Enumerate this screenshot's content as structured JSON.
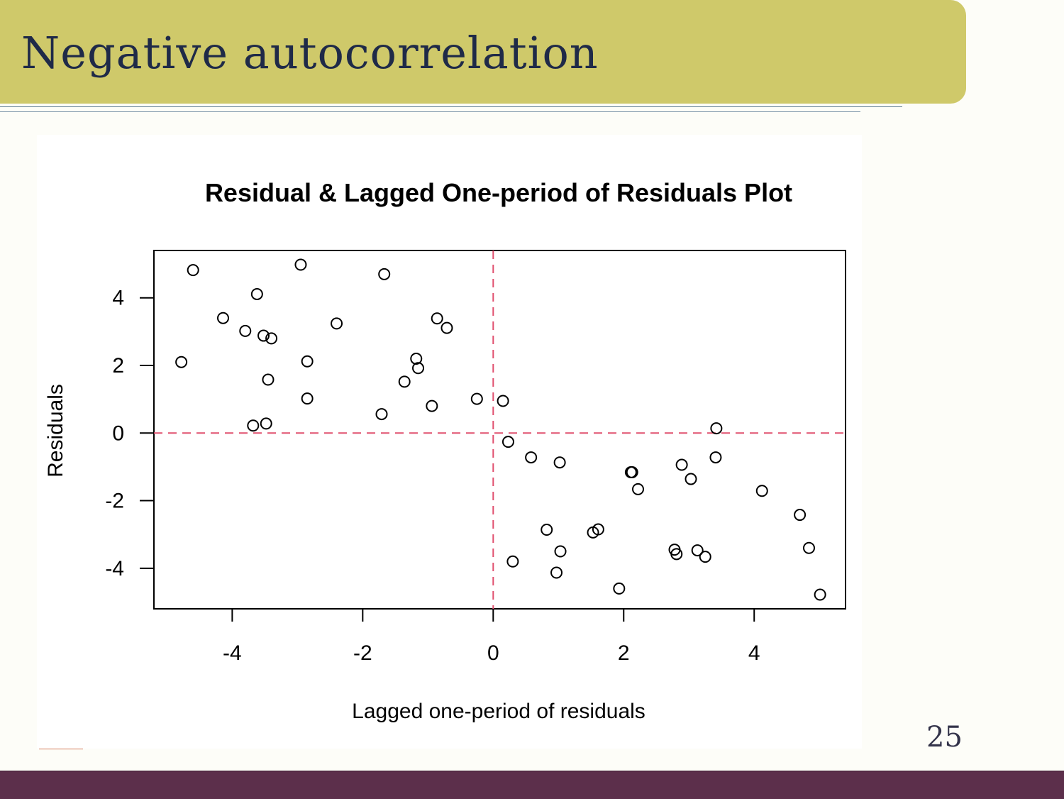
{
  "slide": {
    "title": "Negative autocorrelation",
    "page_number": "25"
  },
  "chart_data": {
    "type": "scatter",
    "title": "Residual & Lagged One-period of Residuals Plot",
    "xlabel": "Lagged one-period of residuals",
    "ylabel": "Residuals",
    "xlim": [
      -5.2,
      5.4
    ],
    "ylim": [
      -5.2,
      5.4
    ],
    "xticks": [
      -4,
      -2,
      0,
      2,
      4
    ],
    "yticks": [
      -4,
      -2,
      0,
      2,
      4
    ],
    "reference_lines": {
      "x": 0,
      "y": 0,
      "style": "dashed",
      "color": "#e0506e"
    },
    "grid": false,
    "series": [
      {
        "marker": "open-circle",
        "points": [
          {
            "x": -4.78,
            "y": 2.1
          },
          {
            "x": -4.6,
            "y": 4.82
          },
          {
            "x": -4.14,
            "y": 3.4
          },
          {
            "x": -3.8,
            "y": 3.02
          },
          {
            "x": -3.62,
            "y": 4.11
          },
          {
            "x": -3.52,
            "y": 2.88
          },
          {
            "x": -3.4,
            "y": 2.8
          },
          {
            "x": -3.45,
            "y": 1.58
          },
          {
            "x": -3.68,
            "y": 0.22
          },
          {
            "x": -3.48,
            "y": 0.28
          },
          {
            "x": -2.95,
            "y": 4.98
          },
          {
            "x": -2.85,
            "y": 2.12
          },
          {
            "x": -2.85,
            "y": 1.02
          },
          {
            "x": -2.4,
            "y": 3.24
          },
          {
            "x": -1.67,
            "y": 4.7
          },
          {
            "x": -1.71,
            "y": 0.56
          },
          {
            "x": -1.36,
            "y": 1.52
          },
          {
            "x": -1.18,
            "y": 2.2
          },
          {
            "x": -1.15,
            "y": 1.92
          },
          {
            "x": -0.86,
            "y": 3.39
          },
          {
            "x": -0.71,
            "y": 3.11
          },
          {
            "x": -0.94,
            "y": 0.8
          },
          {
            "x": -0.25,
            "y": 1.01
          },
          {
            "x": 0.15,
            "y": 0.95
          },
          {
            "x": 0.23,
            "y": -0.26
          },
          {
            "x": 0.3,
            "y": -3.8
          },
          {
            "x": 0.58,
            "y": -0.72
          },
          {
            "x": 0.82,
            "y": -2.86
          },
          {
            "x": 1.02,
            "y": -0.87
          },
          {
            "x": 1.03,
            "y": -3.5
          },
          {
            "x": 0.97,
            "y": -4.13
          },
          {
            "x": 1.53,
            "y": -2.94
          },
          {
            "x": 1.61,
            "y": -2.85
          },
          {
            "x": 1.93,
            "y": -4.6
          },
          {
            "x": 2.11,
            "y": -1.16
          },
          {
            "x": 2.13,
            "y": -1.16
          },
          {
            "x": 2.22,
            "y": -1.66
          },
          {
            "x": 2.78,
            "y": -3.45
          },
          {
            "x": 2.81,
            "y": -3.58
          },
          {
            "x": 2.89,
            "y": -0.94
          },
          {
            "x": 3.03,
            "y": -1.36
          },
          {
            "x": 3.13,
            "y": -3.47
          },
          {
            "x": 3.25,
            "y": -3.66
          },
          {
            "x": 3.41,
            "y": -0.72
          },
          {
            "x": 3.42,
            "y": 0.14
          },
          {
            "x": 4.12,
            "y": -1.71
          },
          {
            "x": 4.7,
            "y": -2.42
          },
          {
            "x": 4.84,
            "y": -3.4
          },
          {
            "x": 5.01,
            "y": -4.78
          }
        ]
      }
    ]
  }
}
